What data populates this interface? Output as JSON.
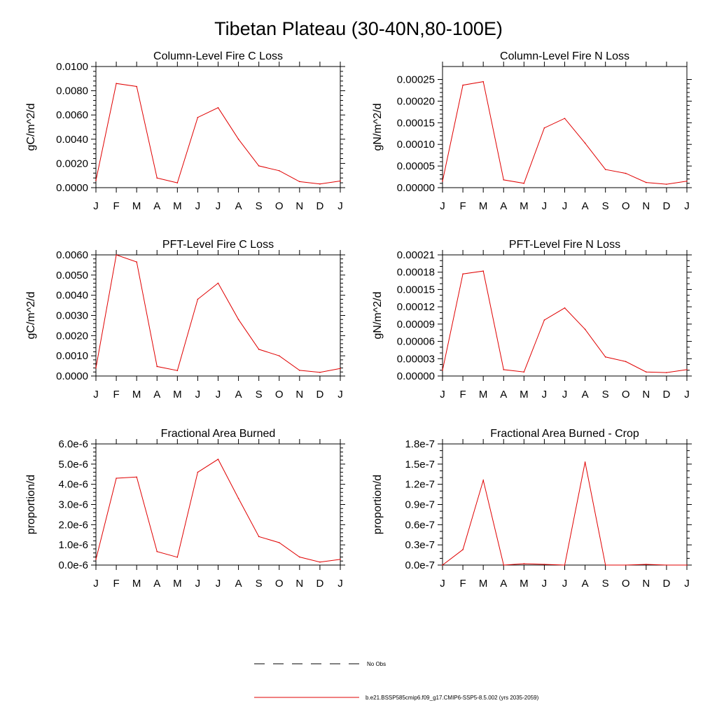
{
  "figure": {
    "title": "Tibetan Plateau (30-40N,80-100E)"
  },
  "legend": {
    "obs_label": "No Obs",
    "model_label": "b.e21.BSSP585cmip6.f09_g17.CMIP6-SSP5-8.5.002 (yrs 2035-2059)",
    "obs_color": "#000000",
    "model_color": "#e00000"
  },
  "chart_data": [
    {
      "type": "line",
      "title": "Column-Level Fire C Loss",
      "xlabel": "",
      "ylabel": "gC/m^2/d",
      "categories": [
        "J",
        "F",
        "M",
        "A",
        "M",
        "J",
        "J",
        "A",
        "S",
        "O",
        "N",
        "D",
        "J"
      ],
      "ylim": [
        0,
        0.01
      ],
      "yticks": [
        0,
        0.002,
        0.004,
        0.006,
        0.008,
        0.01
      ],
      "yticklabels": [
        "0.0000",
        "0.0020",
        "0.0040",
        "0.0060",
        "0.0080",
        "0.0100"
      ],
      "yminor": 4,
      "series": [
        {
          "values": [
            0.0006,
            0.0086,
            0.00835,
            0.0008,
            0.0004,
            0.0058,
            0.0066,
            0.004,
            0.0018,
            0.0014,
            0.0005,
            0.0003,
            0.00055
          ]
        }
      ]
    },
    {
      "type": "line",
      "title": "Column-Level Fire N Loss",
      "xlabel": "",
      "ylabel": "gN/m^2/d",
      "categories": [
        "J",
        "F",
        "M",
        "A",
        "M",
        "J",
        "J",
        "A",
        "S",
        "O",
        "N",
        "D",
        "J"
      ],
      "ylim": [
        0,
        0.00028
      ],
      "yticks": [
        0,
        5e-05,
        0.0001,
        0.00015,
        0.0002,
        0.00025
      ],
      "yticklabels": [
        "0.00000",
        "0.00005",
        "0.00010",
        "0.00015",
        "0.00020",
        "0.00025"
      ],
      "yminor": 4,
      "series": [
        {
          "values": [
            1.5e-05,
            0.000237,
            0.000245,
            1.8e-05,
            1e-05,
            0.000138,
            0.00016,
            0.000103,
            4.2e-05,
            3.3e-05,
            1.2e-05,
            8e-06,
            1.5e-05
          ]
        }
      ]
    },
    {
      "type": "line",
      "title": "PFT-Level Fire C Loss",
      "xlabel": "",
      "ylabel": "gC/m^2/d",
      "categories": [
        "J",
        "F",
        "M",
        "A",
        "M",
        "J",
        "J",
        "A",
        "S",
        "O",
        "N",
        "D",
        "J"
      ],
      "ylim": [
        0,
        0.006
      ],
      "yticks": [
        0,
        0.001,
        0.002,
        0.003,
        0.004,
        0.005,
        0.006
      ],
      "yticklabels": [
        "0.0000",
        "0.0010",
        "0.0020",
        "0.0030",
        "0.0040",
        "0.0050",
        "0.0060"
      ],
      "yminor": 4,
      "series": [
        {
          "values": [
            0.0004,
            0.006,
            0.00565,
            0.00047,
            0.00027,
            0.0038,
            0.0046,
            0.0028,
            0.00132,
            0.001,
            0.00028,
            0.00018,
            0.00037
          ]
        }
      ]
    },
    {
      "type": "line",
      "title": "PFT-Level Fire N Loss",
      "xlabel": "",
      "ylabel": "gN/m^2/d",
      "categories": [
        "J",
        "F",
        "M",
        "A",
        "M",
        "J",
        "J",
        "A",
        "S",
        "O",
        "N",
        "D",
        "J"
      ],
      "ylim": [
        0,
        0.00021
      ],
      "yticks": [
        0,
        3e-05,
        6e-05,
        9e-05,
        0.00012,
        0.00015,
        0.00018,
        0.00021
      ],
      "yticklabels": [
        "0.00000",
        "0.00003",
        "0.00006",
        "0.00009",
        "0.00012",
        "0.00015",
        "0.00018",
        "0.00021"
      ],
      "yminor": 2,
      "series": [
        {
          "values": [
            1e-05,
            0.000177,
            0.000182,
            1.1e-05,
            7e-06,
            9.7e-05,
            0.000118,
            8.1e-05,
            3.3e-05,
            2.5e-05,
            7e-06,
            6e-06,
            1.1e-05
          ]
        }
      ]
    },
    {
      "type": "line",
      "title": "Fractional Area Burned",
      "xlabel": "",
      "ylabel": "proportion/d",
      "categories": [
        "J",
        "F",
        "M",
        "A",
        "M",
        "J",
        "J",
        "A",
        "S",
        "O",
        "N",
        "D",
        "J"
      ],
      "ylim": [
        0,
        6e-06
      ],
      "yticks": [
        0,
        1e-06,
        2e-06,
        3e-06,
        4e-06,
        5e-06,
        6e-06
      ],
      "yticklabels": [
        "0.0e-6",
        "1.0e-6",
        "2.0e-6",
        "3.0e-6",
        "4.0e-6",
        "5.0e-6",
        "6.0e-6"
      ],
      "yminor": 4,
      "series": [
        {
          "values": [
            2.8e-07,
            4.3e-06,
            4.36e-06,
            6.7e-07,
            3.9e-07,
            4.6e-06,
            5.24e-06,
            3.3e-06,
            1.41e-06,
            1.11e-06,
            4e-07,
            1.5e-07,
            2.8e-07
          ]
        }
      ]
    },
    {
      "type": "line",
      "title": "Fractional Area Burned - Crop",
      "xlabel": "",
      "ylabel": "proportion/d",
      "categories": [
        "J",
        "F",
        "M",
        "A",
        "M",
        "J",
        "J",
        "A",
        "S",
        "O",
        "N",
        "D",
        "J"
      ],
      "ylim": [
        0,
        1.8e-07
      ],
      "yticks": [
        0,
        3e-08,
        6e-08,
        9e-08,
        1.2e-07,
        1.5e-07,
        1.8e-07
      ],
      "yticklabels": [
        "0.0e-7",
        "0.3e-7",
        "0.6e-7",
        "0.9e-7",
        "1.2e-7",
        "1.5e-7",
        "1.8e-7"
      ],
      "yminor": 2,
      "series": [
        {
          "values": [
            0,
            2.3e-08,
            1.26e-07,
            0,
            2e-09,
            1e-09,
            0,
            1.53e-07,
            0,
            0,
            1e-09,
            0,
            0
          ]
        }
      ]
    }
  ]
}
